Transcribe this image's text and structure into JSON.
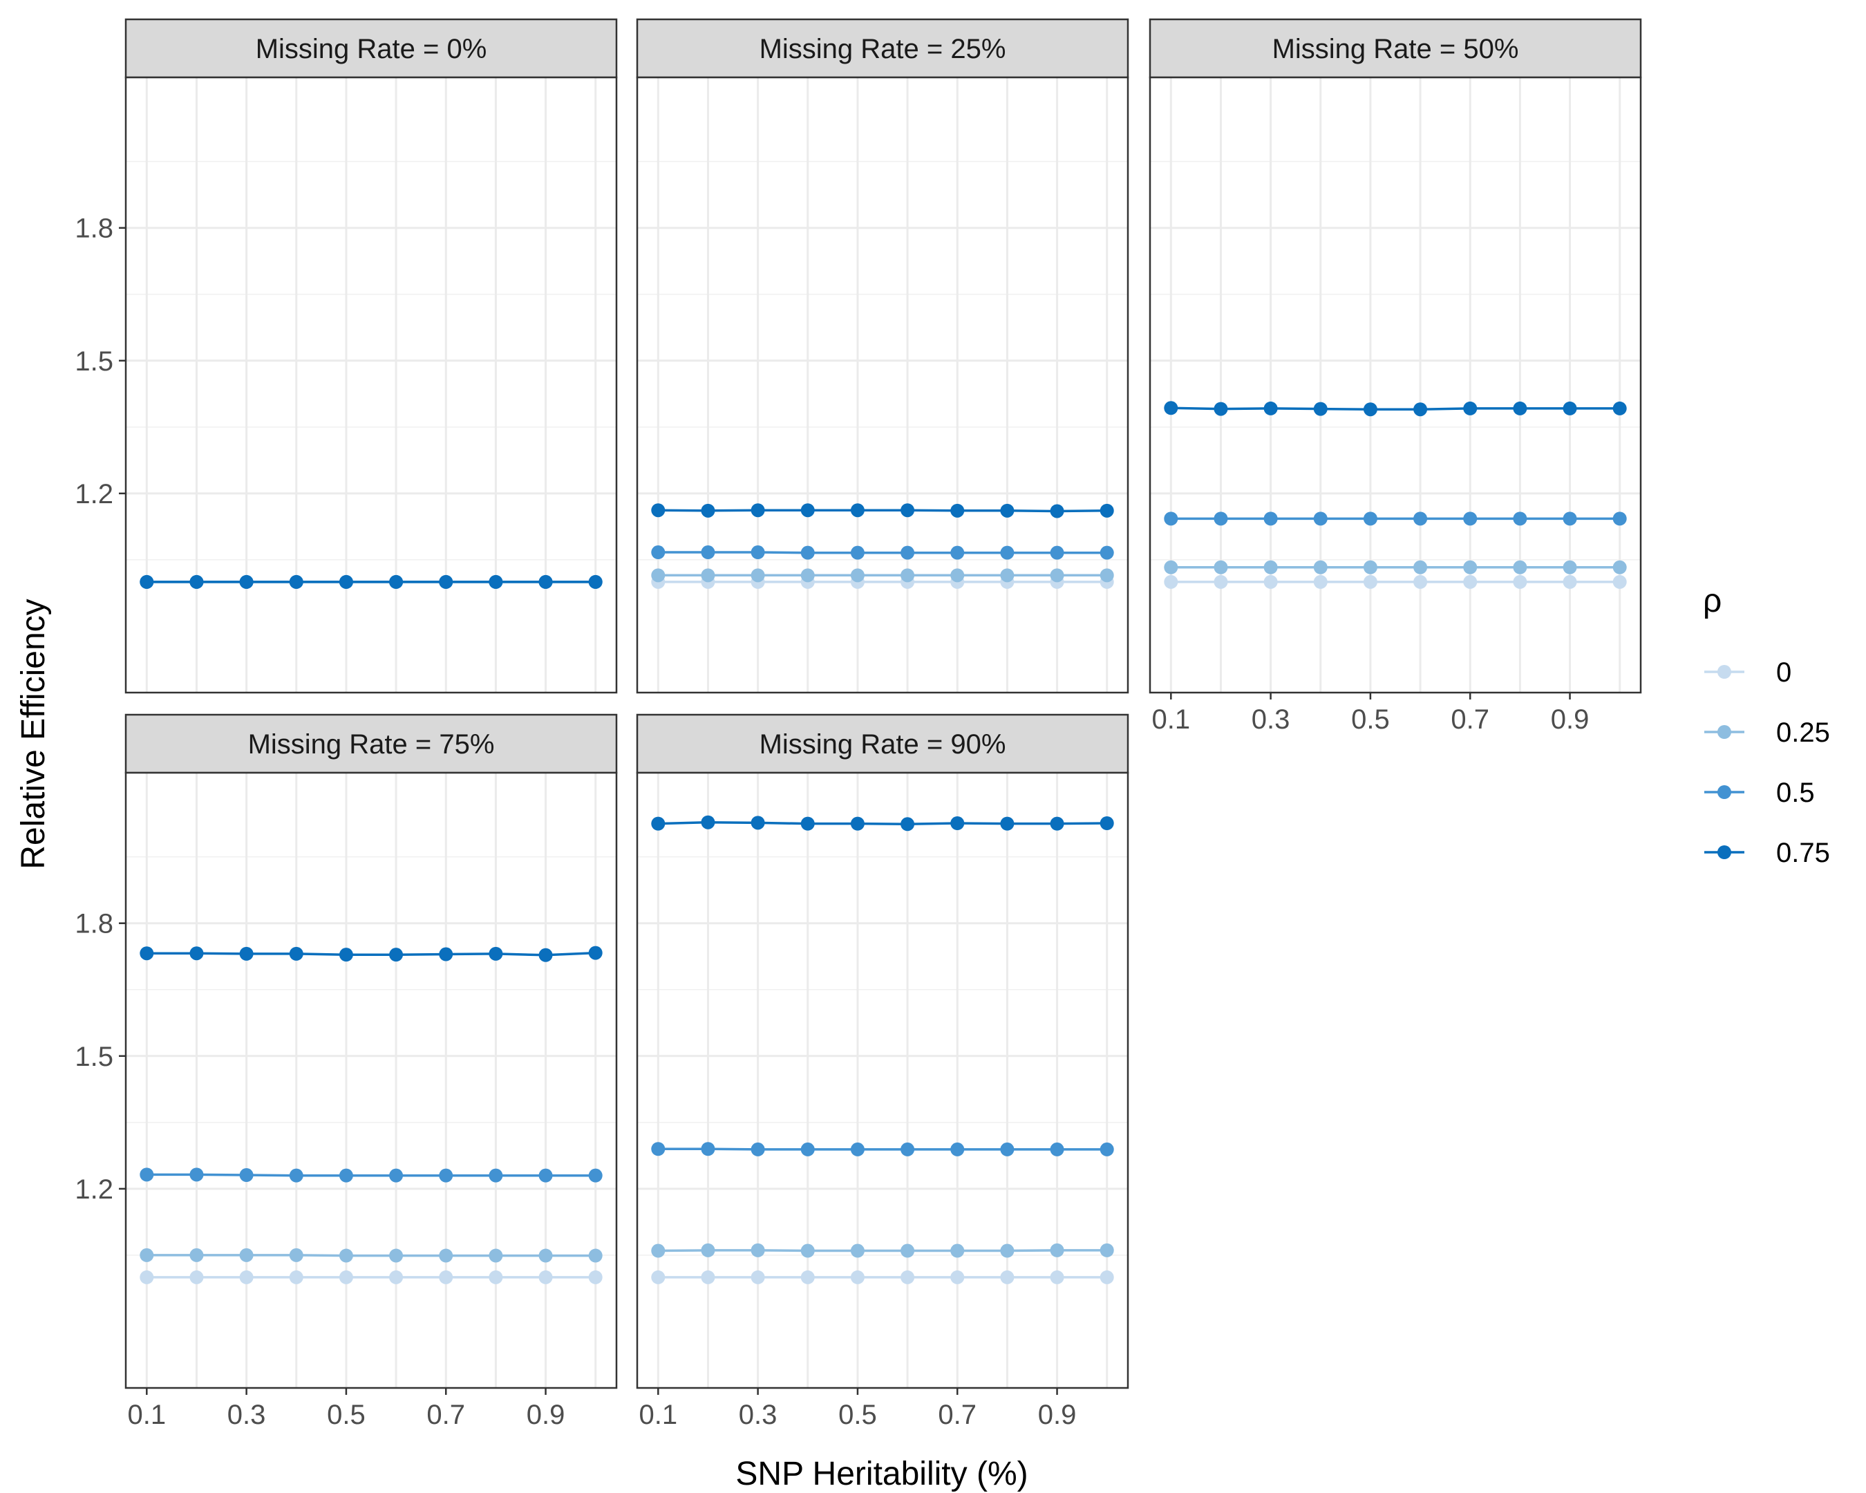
{
  "chart_data": {
    "type": "line",
    "xlabel": "SNP Heritability (%)",
    "ylabel": "Relative Efficiency",
    "x": [
      0.1,
      0.2,
      0.3,
      0.4,
      0.5,
      0.6,
      0.7,
      0.8,
      0.9,
      1.0
    ],
    "x_ticks": [
      "0.1",
      "0.3",
      "0.5",
      "0.7",
      "0.9"
    ],
    "y_ticks": [
      "1.2",
      "1.5",
      "1.8"
    ],
    "ylim": [
      0.75,
      2.14
    ],
    "grid": true,
    "legend": {
      "title": "ρ",
      "placement": "right",
      "entries": [
        "0",
        "0.25",
        "0.5",
        "0.75"
      ]
    },
    "series_colors": {
      "0": "#c6dbef",
      "0.25": "#8dbde0",
      "0.5": "#4292d2",
      "0.75": "#0a6fbd"
    },
    "panels": [
      {
        "label": "Missing Rate = 0%",
        "series": [
          {
            "name": "0",
            "values": [
              1.0,
              1.0,
              1.0,
              1.0,
              1.0,
              1.0,
              1.0,
              1.0,
              1.0,
              1.0
            ]
          },
          {
            "name": "0.25",
            "values": [
              1.0,
              1.0,
              1.0,
              1.0,
              1.0,
              1.0,
              1.0,
              1.0,
              1.0,
              1.0
            ]
          },
          {
            "name": "0.5",
            "values": [
              1.0,
              1.0,
              1.0,
              1.0,
              1.0,
              1.0,
              1.0,
              1.0,
              1.0,
              1.0
            ]
          },
          {
            "name": "0.75",
            "values": [
              1.0,
              1.0,
              1.0,
              1.0,
              1.0,
              1.0,
              1.0,
              1.0,
              1.0,
              1.0
            ]
          }
        ]
      },
      {
        "label": "Missing Rate = 25%",
        "series": [
          {
            "name": "0",
            "values": [
              1.0,
              1.0,
              1.0,
              1.0,
              1.0,
              1.0,
              1.0,
              1.0,
              1.0,
              1.0
            ]
          },
          {
            "name": "0.25",
            "values": [
              1.015,
              1.015,
              1.015,
              1.015,
              1.015,
              1.015,
              1.015,
              1.015,
              1.015,
              1.015
            ]
          },
          {
            "name": "0.5",
            "values": [
              1.067,
              1.067,
              1.067,
              1.066,
              1.066,
              1.066,
              1.066,
              1.066,
              1.066,
              1.066
            ]
          },
          {
            "name": "0.75",
            "values": [
              1.162,
              1.161,
              1.162,
              1.162,
              1.162,
              1.162,
              1.161,
              1.161,
              1.16,
              1.161
            ]
          }
        ]
      },
      {
        "label": "Missing Rate = 50%",
        "series": [
          {
            "name": "0",
            "values": [
              1.0,
              1.0,
              1.0,
              1.0,
              1.0,
              1.0,
              1.0,
              1.0,
              1.0,
              1.0
            ]
          },
          {
            "name": "0.25",
            "values": [
              1.033,
              1.033,
              1.033,
              1.033,
              1.033,
              1.033,
              1.033,
              1.033,
              1.033,
              1.033
            ]
          },
          {
            "name": "0.5",
            "values": [
              1.143,
              1.143,
              1.143,
              1.143,
              1.143,
              1.143,
              1.143,
              1.143,
              1.143,
              1.143
            ]
          },
          {
            "name": "0.75",
            "values": [
              1.393,
              1.391,
              1.392,
              1.391,
              1.39,
              1.39,
              1.392,
              1.392,
              1.392,
              1.392
            ]
          }
        ]
      },
      {
        "label": "Missing Rate = 75%",
        "series": [
          {
            "name": "0",
            "values": [
              1.0,
              1.0,
              1.0,
              1.0,
              1.0,
              1.0,
              1.0,
              1.0,
              1.0,
              1.0
            ]
          },
          {
            "name": "0.25",
            "values": [
              1.05,
              1.05,
              1.05,
              1.05,
              1.049,
              1.049,
              1.049,
              1.049,
              1.049,
              1.049
            ]
          },
          {
            "name": "0.5",
            "values": [
              1.232,
              1.232,
              1.231,
              1.23,
              1.23,
              1.23,
              1.23,
              1.23,
              1.23,
              1.23
            ]
          },
          {
            "name": "0.75",
            "values": [
              1.732,
              1.732,
              1.731,
              1.731,
              1.729,
              1.729,
              1.73,
              1.731,
              1.728,
              1.733
            ]
          }
        ]
      },
      {
        "label": "Missing Rate = 90%",
        "series": [
          {
            "name": "0",
            "values": [
              1.0,
              1.0,
              1.0,
              1.0,
              1.0,
              1.0,
              1.0,
              1.0,
              1.0,
              1.0
            ]
          },
          {
            "name": "0.25",
            "values": [
              1.06,
              1.061,
              1.061,
              1.06,
              1.06,
              1.06,
              1.06,
              1.06,
              1.061,
              1.061
            ]
          },
          {
            "name": "0.5",
            "values": [
              1.29,
              1.29,
              1.289,
              1.289,
              1.289,
              1.289,
              1.289,
              1.289,
              1.289,
              1.289
            ]
          },
          {
            "name": "0.75",
            "values": [
              2.025,
              2.028,
              2.027,
              2.025,
              2.025,
              2.024,
              2.026,
              2.025,
              2.025,
              2.026
            ]
          }
        ]
      }
    ]
  }
}
